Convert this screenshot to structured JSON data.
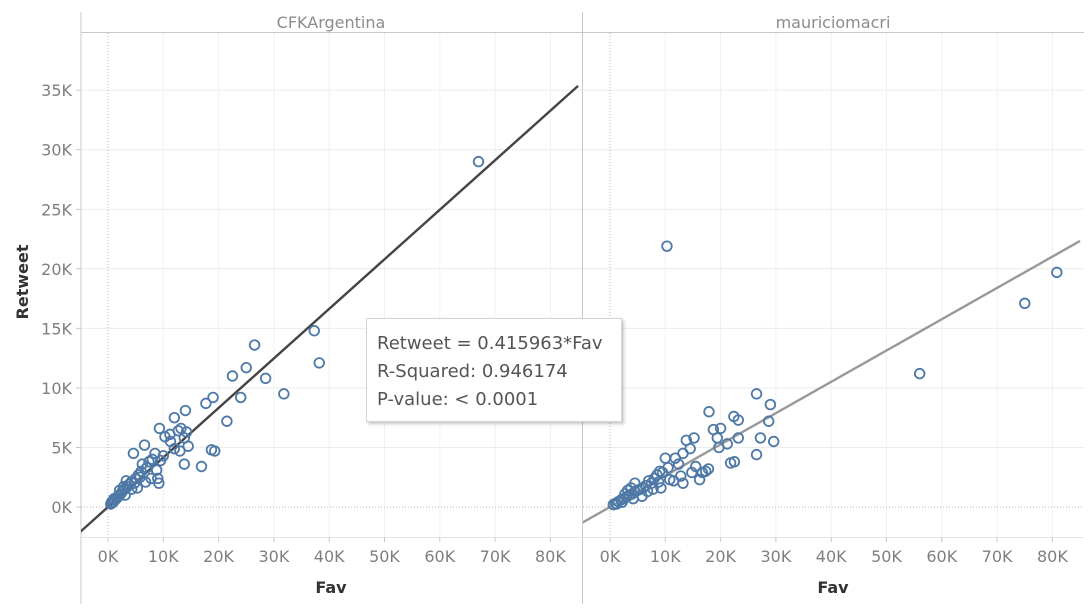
{
  "chart_data": {
    "type": "scatter",
    "y_axis": {
      "label": "Retweet",
      "ticks": [
        0,
        5000,
        10000,
        15000,
        20000,
        25000,
        30000,
        35000
      ],
      "tick_labels": [
        "0K",
        "5K",
        "10K",
        "15K",
        "20K",
        "25K",
        "30K",
        "35K"
      ],
      "range": [
        -2200,
        39500
      ]
    },
    "x_axis": {
      "label": "Fav",
      "ticks": [
        0,
        10000,
        20000,
        30000,
        40000,
        50000,
        60000,
        70000,
        80000
      ],
      "tick_labels": [
        "0K",
        "10K",
        "20K",
        "30K",
        "40K",
        "50K",
        "60K",
        "70K",
        "80K"
      ],
      "range": [
        -5000,
        85000
      ]
    },
    "grid": true,
    "marker_color": "#4e79a7",
    "panels": [
      {
        "title": "CFKArgentina",
        "trend_line": {
          "slope": 0.415963,
          "color": "#444444"
        },
        "points": [
          [
            67000,
            29000
          ],
          [
            37300,
            14800
          ],
          [
            38200,
            12100
          ],
          [
            26500,
            13600
          ],
          [
            25000,
            11700
          ],
          [
            22500,
            11000
          ],
          [
            28500,
            10800
          ],
          [
            31800,
            9500
          ],
          [
            24000,
            9200
          ],
          [
            19000,
            9200
          ],
          [
            17700,
            8700
          ],
          [
            21500,
            7200
          ],
          [
            18700,
            4800
          ],
          [
            19300,
            4700
          ],
          [
            16900,
            3400
          ],
          [
            14000,
            8100
          ],
          [
            12000,
            7500
          ],
          [
            13200,
            6600
          ],
          [
            14200,
            6300
          ],
          [
            13800,
            5800
          ],
          [
            12700,
            6400
          ],
          [
            11200,
            6100
          ],
          [
            10300,
            5900
          ],
          [
            9300,
            6600
          ],
          [
            14500,
            5100
          ],
          [
            13000,
            4700
          ],
          [
            12000,
            4900
          ],
          [
            11300,
            5500
          ],
          [
            13800,
            3600
          ],
          [
            9000,
            2400
          ],
          [
            9200,
            2000
          ],
          [
            8500,
            4500
          ],
          [
            8000,
            4000
          ],
          [
            7400,
            3800
          ],
          [
            7000,
            3300
          ],
          [
            6600,
            5200
          ],
          [
            6000,
            3000
          ],
          [
            5500,
            2700
          ],
          [
            5000,
            2400
          ],
          [
            4600,
            4500
          ],
          [
            4200,
            2100
          ],
          [
            3800,
            1900
          ],
          [
            3500,
            1700
          ],
          [
            3000,
            1500
          ],
          [
            2600,
            1300
          ],
          [
            2300,
            1100
          ],
          [
            2000,
            950
          ],
          [
            1600,
            750
          ],
          [
            1300,
            600
          ],
          [
            1000,
            450
          ],
          [
            800,
            350
          ],
          [
            600,
            300
          ],
          [
            500,
            250
          ],
          [
            7800,
            2400
          ],
          [
            6800,
            2100
          ],
          [
            5300,
            1600
          ],
          [
            4300,
            1500
          ],
          [
            3300,
            2200
          ],
          [
            2800,
            1700
          ],
          [
            4800,
            2000
          ],
          [
            9500,
            3900
          ],
          [
            10000,
            4300
          ],
          [
            8800,
            3100
          ],
          [
            6200,
            3600
          ],
          [
            5800,
            2500
          ],
          [
            3100,
            1000
          ],
          [
            2100,
            1400
          ],
          [
            1800,
            900
          ],
          [
            1100,
            700
          ],
          [
            700,
            450
          ]
        ]
      },
      {
        "title": "mauriciomacri",
        "trend_line": {
          "slope": 0.2628,
          "color": "#999999"
        },
        "points": [
          [
            80800,
            19700
          ],
          [
            75000,
            17100
          ],
          [
            56000,
            11200
          ],
          [
            10300,
            21900
          ],
          [
            26500,
            9500
          ],
          [
            29000,
            8600
          ],
          [
            28700,
            7200
          ],
          [
            23200,
            7300
          ],
          [
            22400,
            7600
          ],
          [
            17900,
            8000
          ],
          [
            20000,
            6600
          ],
          [
            18700,
            6500
          ],
          [
            29600,
            5500
          ],
          [
            27200,
            5800
          ],
          [
            26500,
            4400
          ],
          [
            23200,
            5800
          ],
          [
            22500,
            3800
          ],
          [
            21800,
            3700
          ],
          [
            21200,
            5300
          ],
          [
            19700,
            5000
          ],
          [
            19400,
            5800
          ],
          [
            17800,
            3200
          ],
          [
            16700,
            2900
          ],
          [
            15200,
            5800
          ],
          [
            14500,
            4900
          ],
          [
            13800,
            5600
          ],
          [
            13200,
            4500
          ],
          [
            12400,
            3600
          ],
          [
            11800,
            4100
          ],
          [
            10500,
            3300
          ],
          [
            10000,
            4100
          ],
          [
            9500,
            2900
          ],
          [
            9000,
            3000
          ],
          [
            8500,
            2700
          ],
          [
            8000,
            2400
          ],
          [
            7500,
            2000
          ],
          [
            7000,
            2200
          ],
          [
            6500,
            1800
          ],
          [
            6000,
            1600
          ],
          [
            5500,
            1500
          ],
          [
            5000,
            1400
          ],
          [
            4500,
            1300
          ],
          [
            4000,
            1100
          ],
          [
            3500,
            1000
          ],
          [
            3000,
            850
          ],
          [
            2500,
            700
          ],
          [
            2000,
            600
          ],
          [
            1500,
            450
          ],
          [
            1000,
            300
          ],
          [
            600,
            200
          ],
          [
            4500,
            2000
          ],
          [
            3800,
            1600
          ],
          [
            3200,
            1400
          ],
          [
            2700,
            1100
          ],
          [
            6800,
            1300
          ],
          [
            7800,
            1500
          ],
          [
            9200,
            1600
          ],
          [
            10800,
            2300
          ],
          [
            11500,
            2200
          ],
          [
            12800,
            2600
          ],
          [
            14800,
            2900
          ],
          [
            16200,
            2300
          ],
          [
            15500,
            3400
          ],
          [
            17300,
            3000
          ],
          [
            13200,
            2000
          ],
          [
            8800,
            2100
          ],
          [
            5800,
            900
          ],
          [
            4200,
            700
          ],
          [
            2200,
            400
          ],
          [
            1200,
            250
          ]
        ]
      }
    ],
    "annotation": {
      "lines": [
        "Retweet = 0.415963*Fav",
        "R-Squared: 0.946174",
        "P-value: < 0.0001"
      ]
    }
  }
}
